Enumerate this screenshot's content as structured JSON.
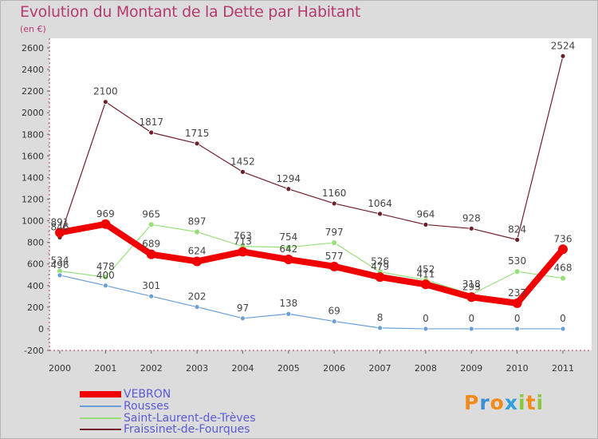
{
  "title": "Evolution du Montant de la Dette par Habitant",
  "unit": "(en €)",
  "logo": {
    "letters": [
      "P",
      "r",
      "o",
      "x",
      "i",
      "t",
      "i"
    ],
    "colors": [
      "#f28a1c",
      "#3b8fd4",
      "#f28a1c",
      "#2f9fe0",
      "#8cc63f",
      "#f28a1c",
      "#8cc63f"
    ]
  },
  "chart_data": {
    "type": "line",
    "title": "Evolution du Montant de la Dette par Habitant",
    "ylabel": "(en €)",
    "ylim": [
      -200,
      2600
    ],
    "yticks": [
      -200,
      0,
      200,
      400,
      600,
      800,
      1000,
      1200,
      1400,
      1600,
      1800,
      2000,
      2200,
      2400,
      2600
    ],
    "x": [
      "2000",
      "2001",
      "2002",
      "2003",
      "2004",
      "2005",
      "2006",
      "2007",
      "2008",
      "2009",
      "2010",
      "2011"
    ],
    "grid": false,
    "legend_position": "bottom-left",
    "series": [
      {
        "name": "Fraissinet-de-Fourques",
        "color": "#6e1e28",
        "values": [
          846,
          2100,
          1817,
          1715,
          1452,
          1294,
          1160,
          1064,
          964,
          928,
          824,
          2524
        ]
      },
      {
        "name": "Saint-Laurent-de-Trèves",
        "color": "#99e07a",
        "values": [
          534,
          478,
          965,
          897,
          763,
          754,
          797,
          526,
          452,
          318,
          530,
          468
        ]
      },
      {
        "name": "Rousses",
        "color": "#6a9ed6",
        "values": [
          496,
          400,
          301,
          202,
          97,
          138,
          69,
          8,
          0,
          0,
          0,
          0
        ]
      },
      {
        "name": "VEBRON",
        "color": "#f00000",
        "values": [
          891,
          969,
          689,
          624,
          713,
          642,
          577,
          479,
          411,
          293,
          237,
          736
        ]
      }
    ],
    "labels": {
      "Fraissinet-de-Fourques": [
        "846",
        "2100",
        "1817",
        "1715",
        "1452",
        "1294",
        "1160",
        "1064",
        "964",
        "928",
        "824",
        "2524"
      ],
      "Saint-Laurent-de-Trèves": [
        "534",
        "478",
        "965",
        "897",
        "763",
        "754",
        "797",
        "526",
        "452",
        "318",
        "530",
        "468"
      ],
      "Rousses": [
        "496",
        "400",
        "301",
        "202",
        "97",
        "138",
        "69",
        "8",
        "0",
        "0",
        "0",
        "0"
      ],
      "VEBRON": [
        "891",
        "969",
        "689",
        "624",
        "713",
        "642",
        "577",
        "479",
        "411",
        "293",
        "237",
        "736"
      ]
    }
  },
  "legend": [
    {
      "label": "VEBRON",
      "color": "#f00000"
    },
    {
      "label": "Rousses",
      "color": "#6a9ed6"
    },
    {
      "label": "Saint-Laurent-de-Trèves",
      "color": "#99e07a"
    },
    {
      "label": "Fraissinet-de-Fourques",
      "color": "#6e1e28"
    }
  ]
}
